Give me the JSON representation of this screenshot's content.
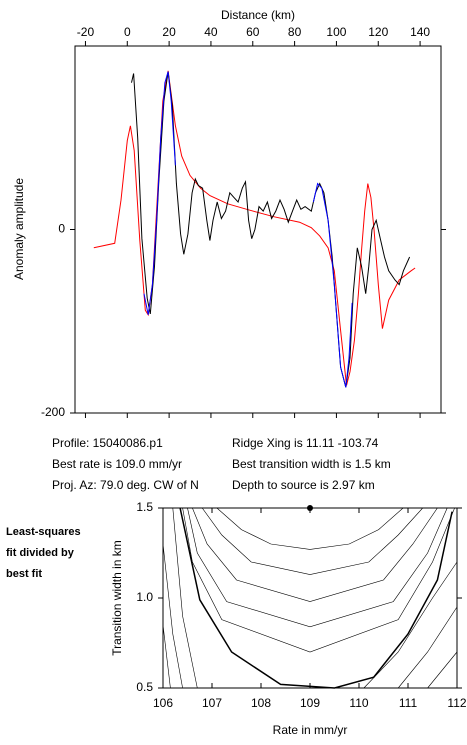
{
  "chart_data": [
    {
      "type": "line",
      "xlabel": "Distance (km)",
      "ylabel": "Anomaly amplitude",
      "xlim": [
        -25,
        150
      ],
      "ylim": [
        -200,
        200
      ],
      "xticks": [
        -20,
        0,
        20,
        40,
        60,
        80,
        100,
        120,
        140
      ],
      "yticks": [
        -200,
        0
      ],
      "series": [
        {
          "color": "#ff0000",
          "x": [
            -16,
            -6,
            -3,
            0,
            1.5,
            3.3,
            6,
            8.6,
            10,
            12,
            14.5,
            17,
            19.5,
            23,
            26,
            30,
            35,
            39.5,
            48,
            58.6,
            70,
            82.4,
            88,
            92,
            96,
            99,
            102,
            104.8,
            106.5,
            108.6,
            110.5,
            112,
            113.5,
            115,
            116.5,
            118,
            120,
            122,
            125,
            130,
            135.7,
            137.6
          ],
          "values": [
            -20,
            -15,
            32,
            97,
            113,
            86,
            -12,
            -88,
            -93,
            -60,
            40,
            140,
            173,
            113,
            80,
            59,
            45,
            37,
            28,
            21,
            14,
            8,
            2,
            -7,
            -20,
            -45,
            -110,
            -170,
            -155,
            -121,
            -70,
            -23,
            20,
            50,
            35,
            -1,
            -60,
            -108,
            -77,
            -55,
            -45,
            -42
          ]
        },
        {
          "color": "#000000",
          "x": [
            2,
            3,
            5,
            7,
            9.5,
            11,
            13,
            15,
            17.5,
            19.5,
            21.5,
            23.5,
            25.5,
            27,
            29,
            31,
            32.5,
            34,
            36,
            38,
            39.5,
            41,
            43,
            45,
            47,
            49,
            51,
            53,
            55,
            56.5,
            58,
            59.5,
            61,
            63,
            65,
            67,
            69,
            71,
            73,
            75,
            77,
            79,
            81,
            83,
            85,
            88,
            90,
            92,
            94,
            96,
            98,
            100,
            102,
            104.5,
            106.5,
            108,
            110,
            112,
            114,
            115.5,
            117,
            119,
            121,
            123,
            125,
            128,
            130,
            132,
            135
          ],
          "values": [
            160,
            170,
            100,
            -10,
            -75,
            -92,
            -40,
            50,
            140,
            172,
            135,
            50,
            -5,
            -27,
            -5,
            40,
            55,
            48,
            45,
            10,
            -12,
            10,
            30,
            12,
            20,
            40,
            35,
            30,
            45,
            52,
            10,
            -10,
            0,
            25,
            20,
            30,
            12,
            20,
            32,
            22,
            8,
            20,
            32,
            22,
            25,
            20,
            40,
            50,
            40,
            10,
            -30,
            -90,
            -150,
            -172,
            -140,
            -70,
            -20,
            -40,
            -70,
            -40,
            0,
            10,
            -10,
            -30,
            -45,
            -55,
            -60,
            -45,
            -30
          ]
        },
        {
          "color": "#0000ff",
          "x": [
            8,
            10,
            12,
            14,
            16,
            18,
            19.5,
            21,
            23,
            50,
            89,
            91,
            93,
            96,
            99,
            102,
            104.5,
            106,
            107.5
          ],
          "values": [
            -70,
            -93,
            -60,
            10,
            100,
            160,
            172,
            140,
            70,
            null,
            30,
            50,
            45,
            10,
            -60,
            -150,
            -172,
            -140,
            -80
          ]
        }
      ],
      "annotations": [
        "Profile: 15040086.p1",
        "Best rate is 109.0 mm/yr",
        "Proj. Az: 79.0 deg. CW of N",
        "Ridge Xing is 11.11 -103.74",
        "Best transition width is 1.5 km",
        "Depth to source is   2.97 km"
      ]
    },
    {
      "type": "contour",
      "xlabel": "Rate in mm/yr",
      "ylabel": "Transition width in km",
      "xlim": [
        106,
        112
      ],
      "ylim": [
        0.5,
        1.5
      ],
      "xticks": [
        106,
        107,
        108,
        109,
        110,
        111,
        112
      ],
      "yticks": [
        0.5,
        {
          "value": 1,
          "label": "1.0"
        },
        1.5
      ],
      "annotation": [
        "Least-squares",
        "fit divided by",
        "best fit"
      ],
      "best": {
        "x": 109,
        "y": 1.5
      },
      "contours": [
        {
          "x": [
            107.1,
            107.6,
            108.2,
            109,
            109.8,
            110.4,
            110.9
          ],
          "y": [
            1.5,
            1.38,
            1.3,
            1.27,
            1.3,
            1.38,
            1.5
          ]
        },
        {
          "x": [
            106.8,
            107.2,
            107.8,
            109,
            110.2,
            110.8,
            111.3
          ],
          "y": [
            1.5,
            1.35,
            1.2,
            1.13,
            1.2,
            1.35,
            1.5
          ]
        },
        {
          "x": [
            106.6,
            106.9,
            107.5,
            109,
            110.5,
            111.1,
            111.6
          ],
          "y": [
            1.5,
            1.3,
            1.1,
            0.98,
            1.1,
            1.3,
            1.5
          ]
        },
        {
          "x": [
            106.5,
            106.7,
            107.3,
            109,
            110.7,
            111.4,
            111.8
          ],
          "y": [
            1.5,
            1.25,
            0.98,
            0.84,
            0.98,
            1.25,
            1.5
          ]
        },
        {
          "x": [
            106.4,
            106.6,
            107.2,
            109,
            110.8,
            111.5,
            111.95
          ],
          "y": [
            1.5,
            1.2,
            0.88,
            0.7,
            0.88,
            1.2,
            1.5
          ]
        },
        {
          "x": [
            106.35,
            106.75,
            107.4,
            108.4,
            109.5,
            110.3,
            111,
            111.6,
            111.9
          ],
          "y": [
            1.5,
            0.99,
            0.7,
            0.52,
            0.5,
            0.56,
            0.8,
            1.1,
            1.48
          ],
          "bold": true
        },
        {
          "x": [
            106.2,
            106.4,
            106.7
          ],
          "y": [
            1.5,
            0.9,
            0.5
          ]
        },
        {
          "x": [
            110.1,
            110.8,
            111.5,
            112
          ],
          "y": [
            0.5,
            0.7,
            1.0,
            1.2
          ]
        },
        {
          "x": [
            106,
            106.2,
            106.4
          ],
          "y": [
            1.3,
            0.8,
            0.5
          ]
        },
        {
          "x": [
            110.8,
            111.4,
            112
          ],
          "y": [
            0.5,
            0.7,
            0.95
          ]
        },
        {
          "x": [
            106,
            106.15
          ],
          "y": [
            0.85,
            0.5
          ]
        },
        {
          "x": [
            111.4,
            112
          ],
          "y": [
            0.5,
            0.7
          ]
        }
      ]
    }
  ]
}
